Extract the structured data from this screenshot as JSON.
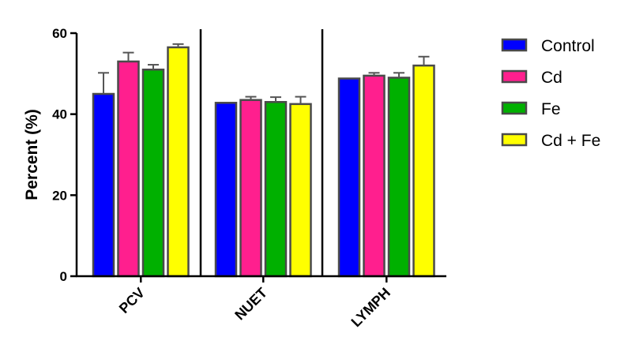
{
  "chart_data": {
    "type": "bar",
    "title": "",
    "xlabel": "",
    "ylabel": "Percent (%)",
    "ylim": [
      0,
      60
    ],
    "yticks": [
      0,
      20,
      40,
      60
    ],
    "categories": [
      "PCV",
      "NUET",
      "LYMPH"
    ],
    "series": [
      {
        "name": "Control",
        "color": "#0000ff",
        "values": [
          45,
          42.8,
          48.8
        ],
        "errors": [
          5.2,
          0.0,
          0.0
        ]
      },
      {
        "name": "Cd",
        "color": "#ff1f8e",
        "values": [
          53,
          43.5,
          49.5
        ],
        "errors": [
          2.2,
          0.8,
          0.7
        ]
      },
      {
        "name": "Fe",
        "color": "#00b000",
        "values": [
          51,
          43,
          49
        ],
        "errors": [
          1.2,
          1.2,
          1.2
        ]
      },
      {
        "name": "Cd + Fe",
        "color": "#ffff00",
        "values": [
          56.5,
          42.5,
          52
        ],
        "errors": [
          0.8,
          1.8,
          2.2
        ]
      }
    ],
    "grid": false,
    "legend": "right"
  }
}
